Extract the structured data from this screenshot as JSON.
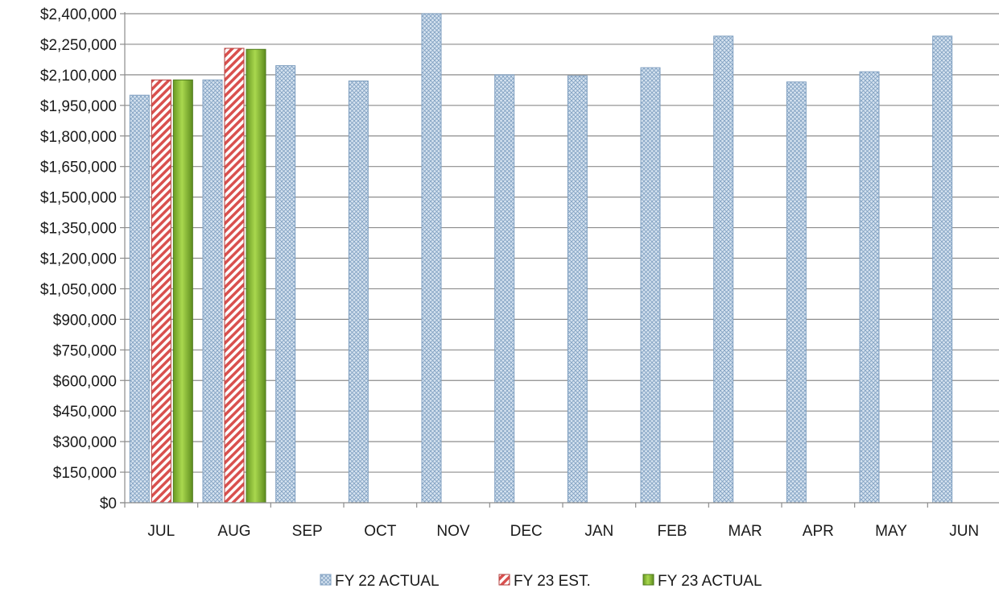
{
  "chart_data": {
    "type": "bar",
    "title": "",
    "xlabel": "",
    "ylabel": "",
    "categories": [
      "JUL",
      "AUG",
      "SEP",
      "OCT",
      "NOV",
      "DEC",
      "JAN",
      "FEB",
      "MAR",
      "APR",
      "MAY",
      "JUN"
    ],
    "ylim": [
      0,
      2400000
    ],
    "y_ticks": [
      "$0",
      "$150,000",
      "$300,000",
      "$450,000",
      "$600,000",
      "$750,000",
      "$900,000",
      "$1,050,000",
      "$1,200,000",
      "$1,350,000",
      "$1,500,000",
      "$1,650,000",
      "$1,800,000",
      "$1,950,000",
      "$2,100,000",
      "$2,250,000",
      "$2,400,000"
    ],
    "grid": true,
    "legend_position": "bottom",
    "series": [
      {
        "name": "FY 22 ACTUAL",
        "pattern": "crosshatch",
        "color": "#c9d9ea",
        "stroke": "#7f9fc0",
        "values": [
          2000000,
          2075000,
          2145000,
          2070000,
          2400000,
          2100000,
          2095000,
          2135000,
          2290000,
          2065000,
          2115000,
          2290000
        ]
      },
      {
        "name": "FY 23 EST.",
        "pattern": "diagonal-stripes",
        "color": "#d9504e",
        "stroke": "#b33f3d",
        "values": [
          2075000,
          2230000,
          null,
          null,
          null,
          null,
          null,
          null,
          null,
          null,
          null,
          null
        ]
      },
      {
        "name": "FY 23 ACTUAL",
        "pattern": "solid-gradient",
        "color": "#8cc43c",
        "stroke": "#4e7a1c",
        "values": [
          2075000,
          2225000,
          null,
          null,
          null,
          null,
          null,
          null,
          null,
          null,
          null,
          null
        ]
      }
    ]
  }
}
